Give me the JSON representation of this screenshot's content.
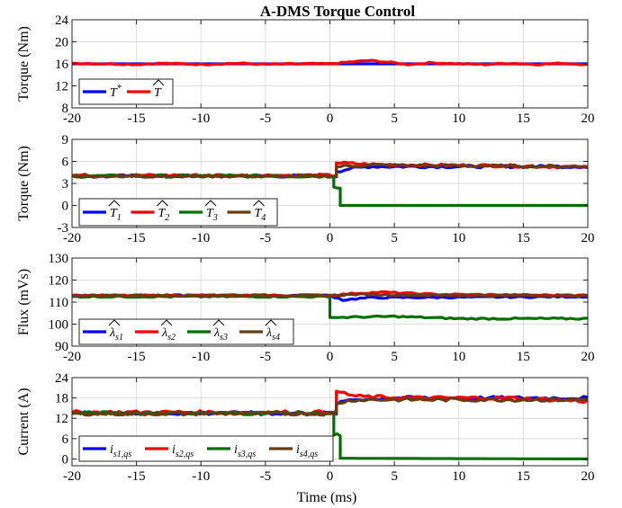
{
  "figure": {
    "title": "A-DMS Torque Control",
    "xlabel": "Time (ms)"
  },
  "colors": {
    "blue": "#0000ff",
    "red": "#ff0000",
    "green": "#007000",
    "brown": "#6b3a10"
  },
  "chart_data": [
    {
      "type": "line",
      "ylabel": "Torque (Nm)",
      "xlim": [
        -20,
        20
      ],
      "ylim": [
        8,
        24
      ],
      "xticks": [
        "-20",
        "-15",
        "-10",
        "-5",
        "0",
        "5",
        "10",
        "15",
        "20"
      ],
      "yticks": [
        "8",
        "12",
        "16",
        "20",
        "24"
      ],
      "grid": true,
      "legend_position": "bottom-left",
      "series": [
        {
          "name": "T*",
          "color": "blue",
          "points": [
            [
              -20,
              16
            ],
            [
              20,
              16
            ]
          ]
        },
        {
          "name": "T̂",
          "color": "red",
          "points": [
            [
              -20,
              16.1
            ],
            [
              -17,
              16.0
            ],
            [
              -15,
              15.9
            ],
            [
              -13,
              16.1
            ],
            [
              -10,
              15.9
            ],
            [
              -7,
              16.1
            ],
            [
              -5,
              15.9
            ],
            [
              -2,
              16.0
            ],
            [
              0,
              16.0
            ],
            [
              1.5,
              16.3
            ],
            [
              3,
              16.6
            ],
            [
              4.5,
              16.3
            ],
            [
              6,
              15.9
            ],
            [
              8,
              16.2
            ],
            [
              10,
              16.0
            ],
            [
              12,
              15.9
            ],
            [
              14,
              16.1
            ],
            [
              16,
              15.9
            ],
            [
              18,
              16.1
            ],
            [
              20,
              15.9
            ]
          ]
        }
      ]
    },
    {
      "type": "line",
      "ylabel": "Torque (Nm)",
      "xlim": [
        -20,
        20
      ],
      "ylim": [
        -3,
        9
      ],
      "xticks": [
        "-20",
        "-15",
        "-10",
        "-5",
        "0",
        "5",
        "10",
        "15",
        "20"
      ],
      "yticks": [
        "-3",
        "0",
        "3",
        "6",
        "9"
      ],
      "grid": true,
      "legend_position": "bottom-left",
      "series": [
        {
          "name": "T̂1",
          "color": "blue",
          "points": [
            [
              -20,
              4.0
            ],
            [
              0.5,
              4.0
            ],
            [
              0.5,
              4.6
            ],
            [
              1.5,
              5.0
            ],
            [
              3,
              5.3
            ],
            [
              20,
              5.3
            ]
          ]
        },
        {
          "name": "T̂2",
          "color": "red",
          "points": [
            [
              -20,
              4.1
            ],
            [
              0.5,
              4.1
            ],
            [
              0.5,
              5.8
            ],
            [
              3,
              5.6
            ],
            [
              8,
              5.5
            ],
            [
              14,
              5.4
            ],
            [
              20,
              5.2
            ]
          ]
        },
        {
          "name": "T̂3",
          "color": "green",
          "points": [
            [
              -20,
              4.0
            ],
            [
              0.3,
              4.0
            ],
            [
              0.3,
              2.5
            ],
            [
              0.8,
              2.5
            ],
            [
              0.8,
              0.0
            ],
            [
              20,
              0.0
            ]
          ]
        },
        {
          "name": "T̂4",
          "color": "brown",
          "points": [
            [
              -20,
              4.0
            ],
            [
              0.5,
              4.0
            ],
            [
              0.5,
              5.3
            ],
            [
              3,
              5.5
            ],
            [
              10,
              5.4
            ],
            [
              20,
              5.3
            ]
          ]
        }
      ]
    },
    {
      "type": "line",
      "ylabel": "Flux (mVs)",
      "xlim": [
        -20,
        20
      ],
      "ylim": [
        90,
        130
      ],
      "xticks": [
        "-20",
        "-15",
        "-10",
        "-5",
        "0",
        "5",
        "10",
        "15",
        "20"
      ],
      "yticks": [
        "90",
        "100",
        "110",
        "120",
        "130"
      ],
      "grid": true,
      "legend_position": "bottom-left",
      "series": [
        {
          "name": "λ̂s1",
          "color": "blue",
          "points": [
            [
              -20,
              113
            ],
            [
              0,
              113
            ],
            [
              1,
              111
            ],
            [
              3,
              112
            ],
            [
              20,
              112.5
            ]
          ]
        },
        {
          "name": "λ̂s2",
          "color": "red",
          "points": [
            [
              -20,
              113
            ],
            [
              0,
              113
            ],
            [
              2,
              114
            ],
            [
              4,
              114.5
            ],
            [
              8,
              113.5
            ],
            [
              20,
              113
            ]
          ]
        },
        {
          "name": "λ̂s3",
          "color": "green",
          "points": [
            [
              -20,
              112.5
            ],
            [
              0,
              112.5
            ],
            [
              0,
              103
            ],
            [
              5,
              103.5
            ],
            [
              10,
              102.5
            ],
            [
              20,
              102.5
            ]
          ]
        },
        {
          "name": "λ̂s4",
          "color": "brown",
          "points": [
            [
              -20,
              113
            ],
            [
              0,
              113
            ],
            [
              2,
              113.5
            ],
            [
              10,
              113
            ],
            [
              20,
              113
            ]
          ]
        }
      ]
    },
    {
      "type": "line",
      "ylabel": "Current (A)",
      "xlim": [
        -20,
        20
      ],
      "ylim": [
        -2,
        24
      ],
      "xticks": [
        "-20",
        "-15",
        "-10",
        "-5",
        "0",
        "5",
        "10",
        "15",
        "20"
      ],
      "yticks": [
        "0",
        "6",
        "12",
        "18",
        "24"
      ],
      "grid": true,
      "legend_position": "bottom-left",
      "series": [
        {
          "name": "is1,qs",
          "color": "blue",
          "points": [
            [
              -20,
              13.5
            ],
            [
              0.5,
              13.5
            ],
            [
              0.5,
              16
            ],
            [
              1.5,
              17.5
            ],
            [
              5,
              18
            ],
            [
              20,
              18
            ]
          ]
        },
        {
          "name": "is2,qs",
          "color": "red",
          "points": [
            [
              -20,
              13.8
            ],
            [
              0.5,
              13.8
            ],
            [
              0.5,
              20
            ],
            [
              2,
              18.5
            ],
            [
              6,
              18
            ],
            [
              14,
              18
            ],
            [
              20,
              17
            ]
          ]
        },
        {
          "name": "is3,qs",
          "color": "green",
          "points": [
            [
              -20,
              13.5
            ],
            [
              0.3,
              13.5
            ],
            [
              0.3,
              7
            ],
            [
              0.8,
              7
            ],
            [
              0.8,
              0.2
            ],
            [
              20,
              0.0
            ]
          ]
        },
        {
          "name": "is4,qs",
          "color": "brown",
          "points": [
            [
              -20,
              13.4
            ],
            [
              0.5,
              13.4
            ],
            [
              0.5,
              16.5
            ],
            [
              2,
              17.5
            ],
            [
              10,
              17.5
            ],
            [
              20,
              17.5
            ]
          ]
        }
      ]
    }
  ],
  "legends": [
    [
      {
        "main": "T",
        "sup": "*",
        "hat": false,
        "color": "blue"
      },
      {
        "main": "T",
        "hat": true,
        "color": "red"
      }
    ],
    [
      {
        "main": "T",
        "sub": "1",
        "hat": true,
        "color": "blue"
      },
      {
        "main": "T",
        "sub": "2",
        "hat": true,
        "color": "red"
      },
      {
        "main": "T",
        "sub": "3",
        "hat": true,
        "color": "green"
      },
      {
        "main": "T",
        "sub": "4",
        "hat": true,
        "color": "brown"
      }
    ],
    [
      {
        "main": "λ",
        "sub": "s1",
        "hat": true,
        "color": "blue"
      },
      {
        "main": "λ",
        "sub": "s2",
        "hat": true,
        "color": "red"
      },
      {
        "main": "λ",
        "sub": "s3",
        "hat": true,
        "color": "green"
      },
      {
        "main": "λ",
        "sub": "s4",
        "hat": true,
        "color": "brown"
      }
    ],
    [
      {
        "main": "i",
        "sub": "s1,qs",
        "hat": false,
        "color": "blue"
      },
      {
        "main": "i",
        "sub": "s2,qs",
        "hat": false,
        "color": "red"
      },
      {
        "main": "i",
        "sub": "s3,qs",
        "hat": false,
        "color": "green"
      },
      {
        "main": "i",
        "sub": "s4,qs",
        "hat": false,
        "color": "brown"
      }
    ]
  ]
}
